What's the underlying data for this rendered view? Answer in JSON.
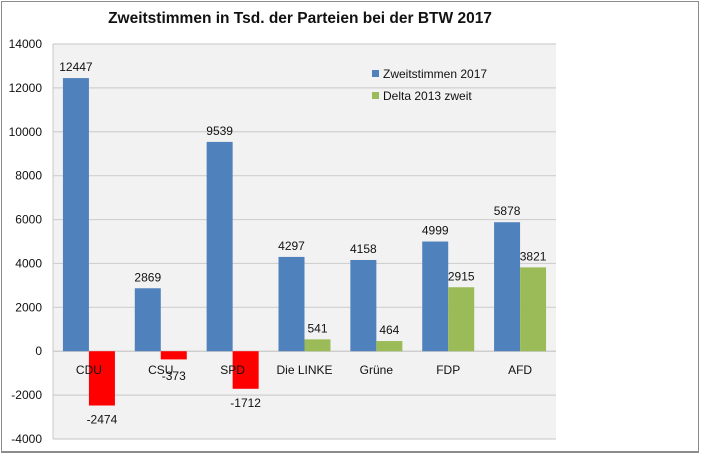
{
  "chart_data": {
    "type": "bar",
    "title": "Zweitstimmen in Tsd. der Parteien bei der BTW 2017",
    "xlabel": "",
    "ylabel": "",
    "categories": [
      "CDU",
      "CSU",
      "SPD",
      "Die LINKE",
      "Grüne",
      "FDP",
      "AFD"
    ],
    "series": [
      {
        "name": "Zweitstimmen 2017",
        "color": "#4f81bd",
        "values": [
          12447,
          2869,
          9539,
          4297,
          4158,
          4999,
          5878
        ]
      },
      {
        "name": "Delta 2013 zweit",
        "color": "#9bbb59",
        "negative_color": "#ff0000",
        "values": [
          -2474,
          -373,
          -1712,
          541,
          464,
          2915,
          3821
        ]
      }
    ],
    "ylim": [
      -4000,
      14000
    ],
    "yticks": [
      14000,
      12000,
      10000,
      8000,
      6000,
      4000,
      2000,
      0,
      -2000,
      -4000
    ],
    "grid": true,
    "legend": "top-right",
    "data_labels": true
  }
}
